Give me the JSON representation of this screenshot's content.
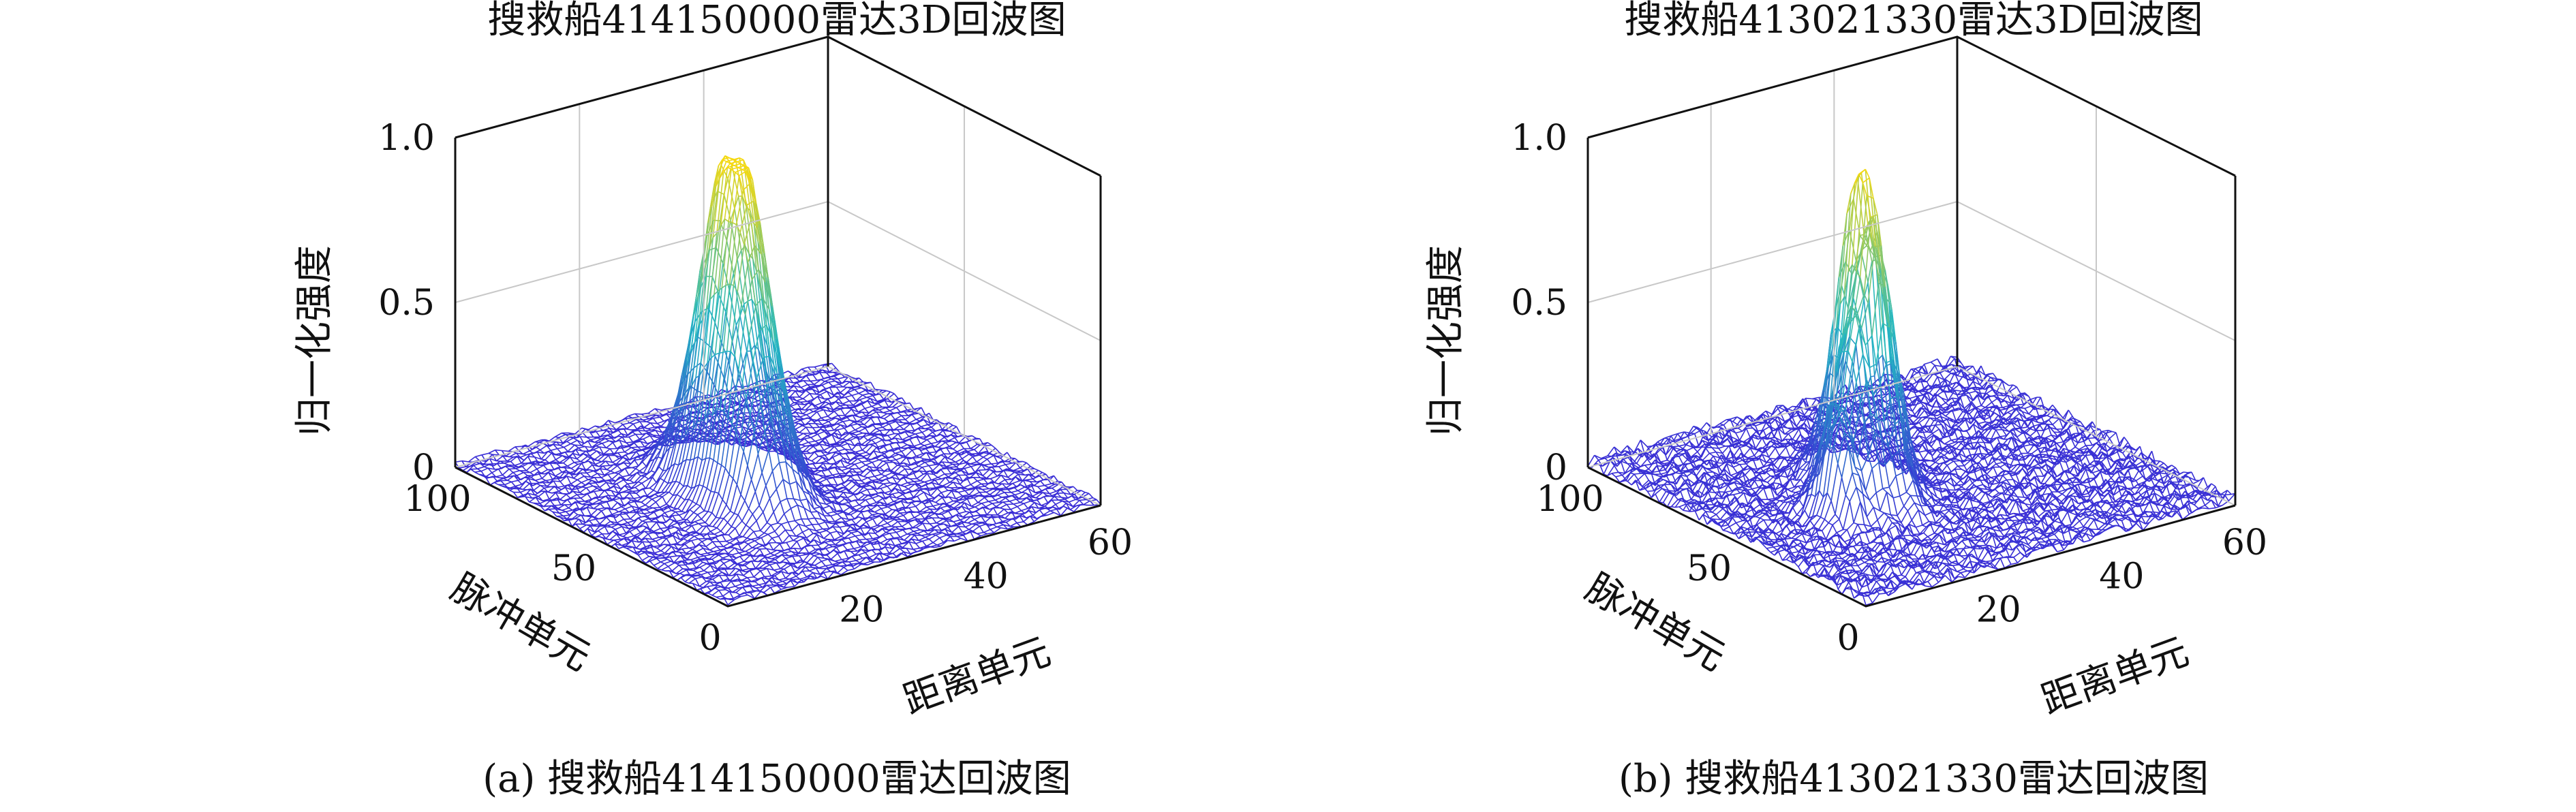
{
  "figure": {
    "colors": {
      "low": "#3a2ad6",
      "mid": "#23b8c2",
      "high": "#f7d90e",
      "axis": "#111111",
      "grid": "#c8c8c8"
    }
  },
  "chart_data": [
    {
      "type": "surface",
      "title": "搜救船414150000雷达3D回波图",
      "caption": "(a) 搜救船414150000雷达回波图",
      "xlabel": "距离单元",
      "ylabel": "脉冲单元",
      "zlabel": "归一化强度",
      "xlim": [
        0,
        60
      ],
      "ylim": [
        0,
        100
      ],
      "zlim": [
        0,
        1
      ],
      "xticks": [
        "20",
        "40",
        "60"
      ],
      "xticks_values": [
        20,
        40,
        60
      ],
      "yticks": [
        "0",
        "50",
        "100"
      ],
      "yticks_values": [
        0,
        50,
        100
      ],
      "zticks": [
        "0",
        "0.5",
        "1.0"
      ],
      "zticks_values": [
        0,
        0.5,
        1.0
      ],
      "grid": true,
      "peaks": [
        {
          "x": 24,
          "y": 52,
          "amplitude": 1.0,
          "sigma_x": 3.2,
          "sigma_y": 10
        },
        {
          "x": 21,
          "y": 40,
          "amplitude": 0.35,
          "sigma_x": 2.5,
          "sigma_y": 7
        },
        {
          "x": 28,
          "y": 60,
          "amplitude": 0.3,
          "sigma_x": 3,
          "sigma_y": 6
        }
      ],
      "noise_level": 0.02
    },
    {
      "type": "surface",
      "title": "搜救船413021330雷达3D回波图",
      "caption": "(b) 搜救船413021330雷达回波图",
      "xlabel": "距离单元",
      "ylabel": "脉冲单元",
      "zlabel": "归一化强度",
      "xlim": [
        0,
        60
      ],
      "ylim": [
        0,
        100
      ],
      "zlim": [
        0,
        1
      ],
      "xticks": [
        "20",
        "40",
        "60"
      ],
      "xticks_values": [
        20,
        40,
        60
      ],
      "yticks": [
        "0",
        "50",
        "100"
      ],
      "yticks_values": [
        0,
        50,
        100
      ],
      "zticks": [
        "0",
        "0.5",
        "1.0"
      ],
      "zticks_values": [
        0,
        0.5,
        1.0
      ],
      "grid": true,
      "peaks": [
        {
          "x": 22,
          "y": 50,
          "amplitude": 1.0,
          "sigma_x": 1.6,
          "sigma_y": 8
        },
        {
          "x": 26,
          "y": 55,
          "amplitude": 0.75,
          "sigma_x": 1.5,
          "sigma_y": 7
        },
        {
          "x": 18,
          "y": 45,
          "amplitude": 0.55,
          "sigma_x": 1.4,
          "sigma_y": 6
        },
        {
          "x": 14,
          "y": 42,
          "amplitude": 0.35,
          "sigma_x": 1.3,
          "sigma_y": 5
        }
      ],
      "noise_level": 0.04
    }
  ]
}
